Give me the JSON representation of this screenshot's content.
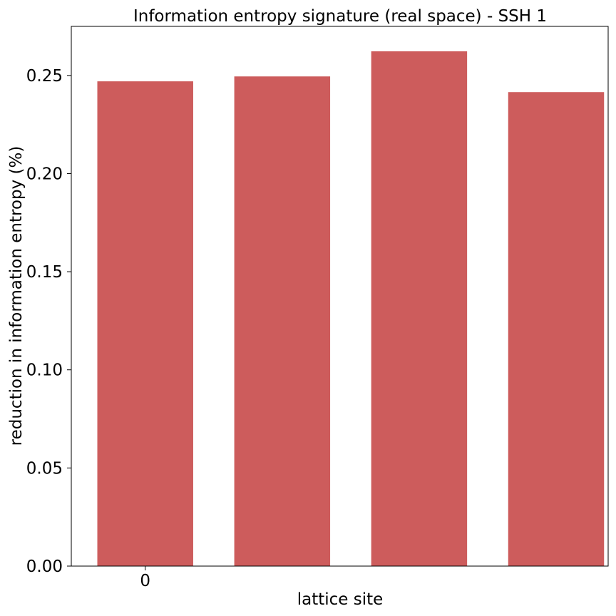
{
  "chart_data": {
    "type": "bar",
    "title": "Information entropy signature (real space) - SSH 1",
    "xlabel": "lattice site",
    "ylabel": "reduction in information entropy (%)",
    "x": [
      0,
      1,
      2,
      3
    ],
    "values": [
      0.247,
      0.2495,
      0.2623,
      0.2415
    ],
    "xticks": [
      0
    ],
    "xtick_labels": [
      "0"
    ],
    "yticks": [
      0.0,
      0.05,
      0.1,
      0.15,
      0.2,
      0.25
    ],
    "ytick_labels": [
      "0.00",
      "0.05",
      "0.10",
      "0.15",
      "0.20",
      "0.25"
    ],
    "ylim": [
      0,
      0.275
    ],
    "xlim": [
      -0.54,
      3.38
    ],
    "bar_width": 0.7,
    "bar_color": "#cd5c5c",
    "grid": false,
    "legend": "none"
  }
}
